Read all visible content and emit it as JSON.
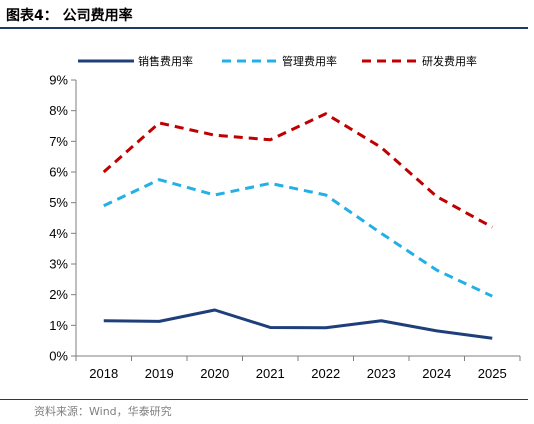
{
  "header": {
    "title": "图表4：  公司费用率"
  },
  "footer": {
    "source": "资料来源：Wind，华泰研究"
  },
  "colors": {
    "header_rule": "#1f3b63",
    "axis": "#7f7f7f",
    "source_text": "#7f7f7f"
  },
  "chart_data": {
    "type": "line",
    "x": [
      "2018",
      "2019",
      "2020",
      "2021",
      "2022",
      "2023",
      "2024",
      "2025"
    ],
    "ylim": [
      0,
      9
    ],
    "yticks": [
      0,
      1,
      2,
      3,
      4,
      5,
      6,
      7,
      8,
      9
    ],
    "ytick_labels": [
      "0%",
      "1%",
      "2%",
      "3%",
      "4%",
      "5%",
      "6%",
      "7%",
      "8%",
      "9%"
    ],
    "legend_position": "top",
    "grid": false,
    "series": [
      {
        "name": "销售费用率",
        "values": [
          1.15,
          1.13,
          1.5,
          0.93,
          0.92,
          1.15,
          0.82,
          0.58
        ],
        "color": "#1f3f7a",
        "dash": "solid"
      },
      {
        "name": "管理费用率",
        "values": [
          4.9,
          5.75,
          5.25,
          5.63,
          5.25,
          4.0,
          2.8,
          1.95
        ],
        "color": "#23b0e6",
        "dash": "dashed"
      },
      {
        "name": "研发费用率",
        "values": [
          6.0,
          7.6,
          7.2,
          7.05,
          7.9,
          6.8,
          5.2,
          4.2
        ],
        "color": "#c00000",
        "dash": "dashed"
      }
    ]
  }
}
